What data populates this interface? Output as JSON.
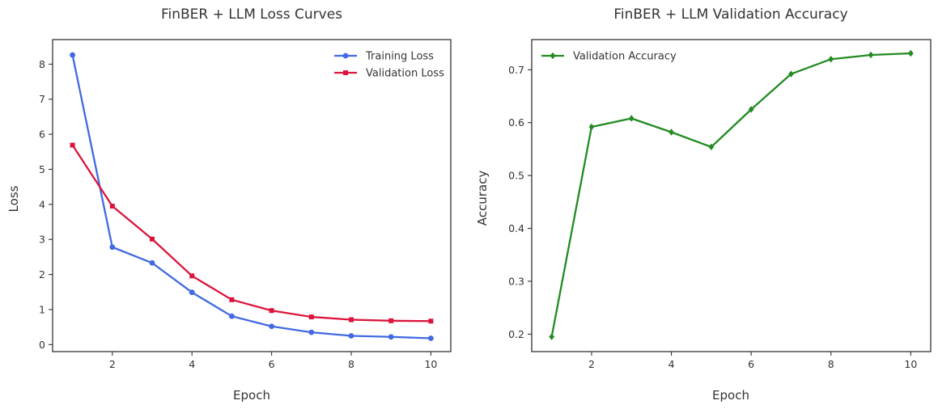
{
  "chart_data": [
    {
      "type": "line",
      "title": "FinBER + LLM Loss Curves",
      "xlabel": "Epoch",
      "ylabel": "Loss",
      "x": [
        1,
        2,
        3,
        4,
        5,
        6,
        7,
        8,
        9,
        10
      ],
      "xlim": [
        0.5,
        10.5
      ],
      "ylim": [
        -0.2,
        8.7
      ],
      "xticks": [
        2,
        4,
        6,
        8,
        10
      ],
      "yticks": [
        0,
        1,
        2,
        3,
        4,
        5,
        6,
        7,
        8
      ],
      "grid": false,
      "legend": "top-right",
      "series": [
        {
          "name": "Training Loss",
          "color": "#4169e1",
          "marker": "circle",
          "values": [
            8.26,
            2.78,
            2.33,
            1.49,
            0.81,
            0.52,
            0.35,
            0.25,
            0.22,
            0.18
          ]
        },
        {
          "name": "Validation Loss",
          "color": "#dc143c",
          "marker": "square",
          "values": [
            5.69,
            3.95,
            3.01,
            1.96,
            1.28,
            0.97,
            0.79,
            0.71,
            0.68,
            0.67
          ]
        }
      ]
    },
    {
      "type": "line",
      "title": "FinBER + LLM Validation Accuracy",
      "xlabel": "Epoch",
      "ylabel": "Accuracy",
      "x": [
        1,
        2,
        3,
        4,
        5,
        6,
        7,
        8,
        9,
        10
      ],
      "xlim": [
        0.5,
        10.5
      ],
      "ylim": [
        0.167,
        0.757
      ],
      "xticks": [
        2,
        4,
        6,
        8,
        10
      ],
      "yticks": [
        0.2,
        0.3,
        0.4,
        0.5,
        0.6,
        0.7
      ],
      "grid": false,
      "legend": "top-left",
      "series": [
        {
          "name": "Validation Accuracy",
          "color": "#228b22",
          "marker": "diamond",
          "values": [
            0.195,
            0.592,
            0.608,
            0.582,
            0.554,
            0.625,
            0.692,
            0.72,
            0.728,
            0.731
          ]
        }
      ]
    }
  ]
}
